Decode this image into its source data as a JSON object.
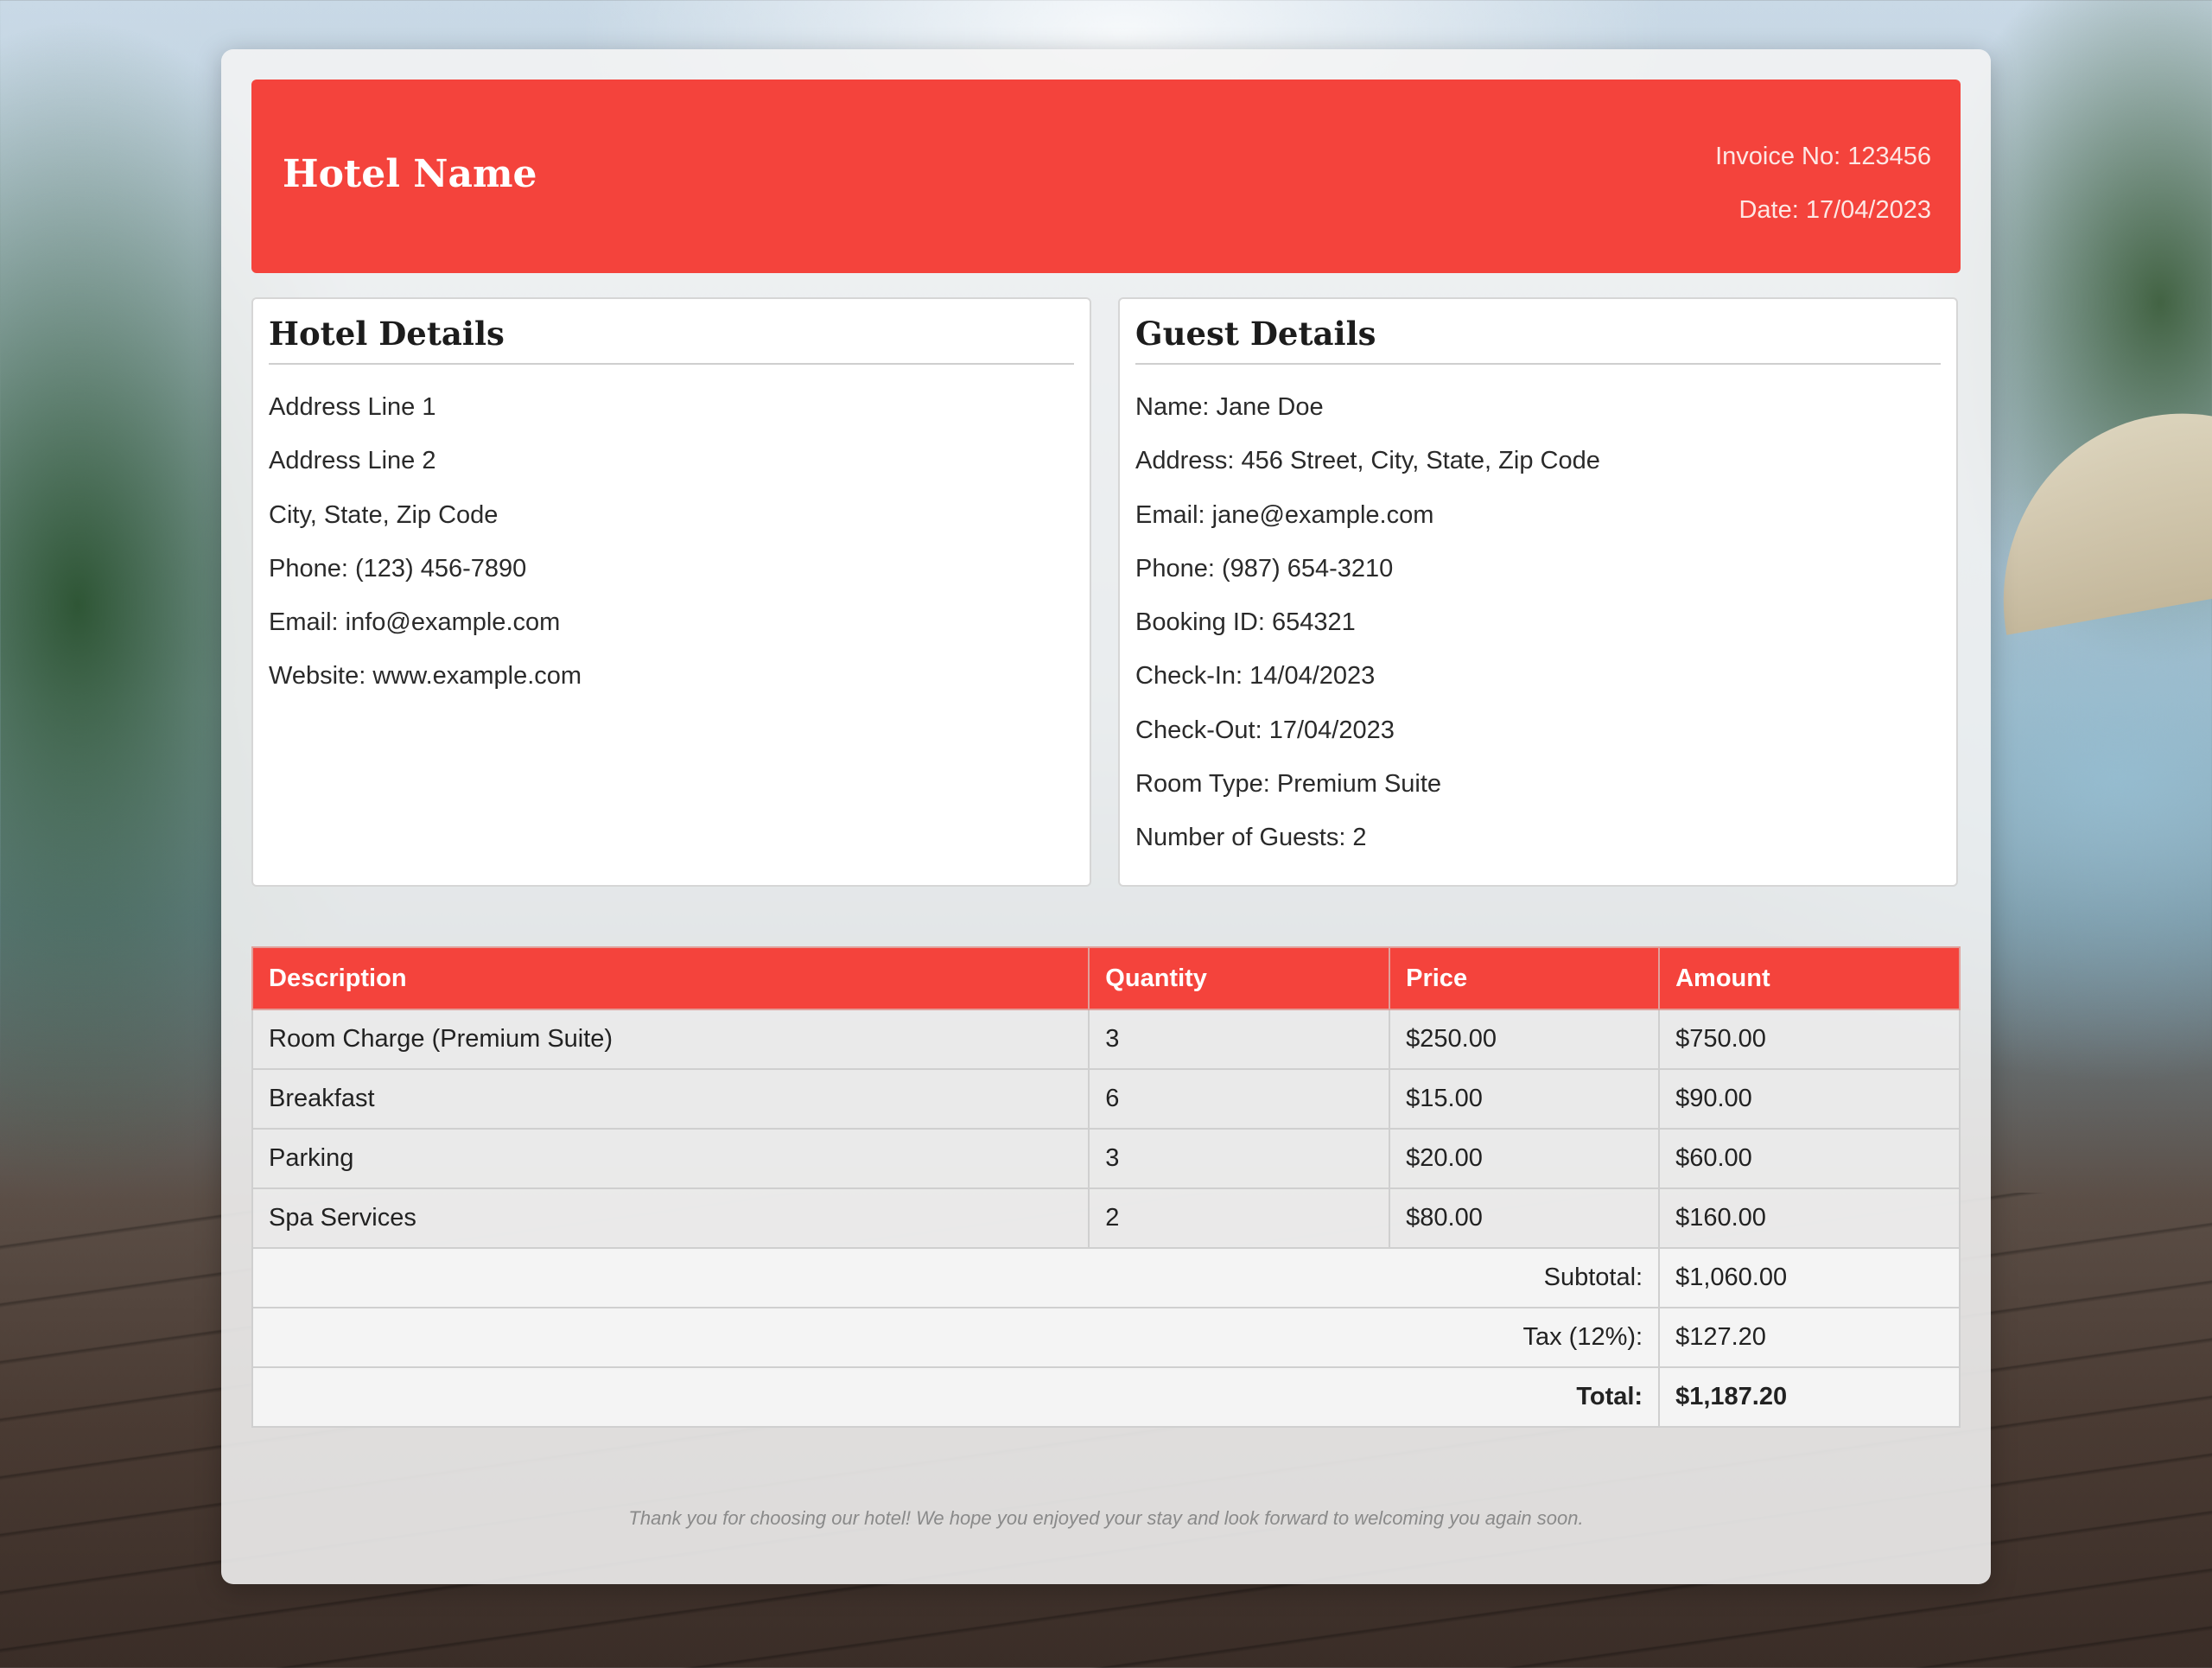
{
  "header": {
    "hotel_name": "Hotel Name",
    "invoice_no": "Invoice No: 123456",
    "date": "Date: 17/04/2023"
  },
  "hotel_details": {
    "title": "Hotel Details",
    "lines": [
      "Address Line 1",
      "Address Line 2",
      "City, State, Zip Code",
      "Phone: (123) 456-7890",
      "Email: info@example.com",
      "Website: www.example.com"
    ]
  },
  "guest_details": {
    "title": "Guest Details",
    "lines": [
      "Name: Jane Doe",
      "Address: 456 Street, City, State, Zip Code",
      "Email: jane@example.com",
      "Phone: (987) 654-3210",
      "Booking ID: 654321",
      "Check-In: 14/04/2023",
      "Check-Out: 17/04/2023",
      "Room Type: Premium Suite",
      "Number of Guests: 2"
    ]
  },
  "table": {
    "headers": [
      "Description",
      "Quantity",
      "Price",
      "Amount"
    ],
    "rows": [
      [
        "Room Charge (Premium Suite)",
        "3",
        "$250.00",
        "$750.00"
      ],
      [
        "Breakfast",
        "6",
        "$15.00",
        "$90.00"
      ],
      [
        "Parking",
        "3",
        "$20.00",
        "$60.00"
      ],
      [
        "Spa Services",
        "2",
        "$80.00",
        "$160.00"
      ]
    ],
    "summary": [
      {
        "label": "Subtotal:",
        "value": "$1,060.00"
      },
      {
        "label": "Tax (12%):",
        "value": "$127.20"
      },
      {
        "label": "Total:",
        "value": "$1,187.20"
      }
    ]
  },
  "footer": {
    "note": "Thank you for choosing our hotel! We hope you enjoyed your stay and look forward to welcoming you again soon."
  }
}
